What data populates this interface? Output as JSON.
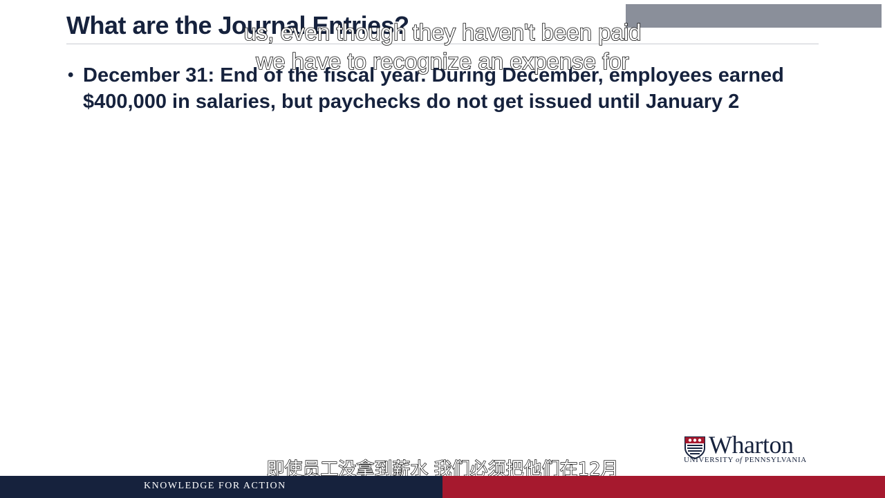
{
  "slide": {
    "title": "What are the Journal Entries?",
    "bullets": [
      {
        "text": "December 31: End of the fiscal year.  During December, employees earned $400,000 in salaries, but paychecks do not get issued until January 2"
      }
    ]
  },
  "captions": {
    "english_line_1": "us, even though they haven't been paid",
    "english_line_2": "we have to recognize an expense for",
    "chinese": "即使员工没拿到薪水 我们必须把他们在12月"
  },
  "branding": {
    "logo_name": "Wharton",
    "logo_subtitle_part1": "UNIVERSITY ",
    "logo_subtitle_of": "of",
    "logo_subtitle_part2": " PENNSYLVANIA",
    "tagline": "KNOWLEDGE FOR ACTION"
  },
  "colors": {
    "navy": "#16223d",
    "crimson": "#a6192e",
    "gray_box": "#8a8f9a"
  }
}
